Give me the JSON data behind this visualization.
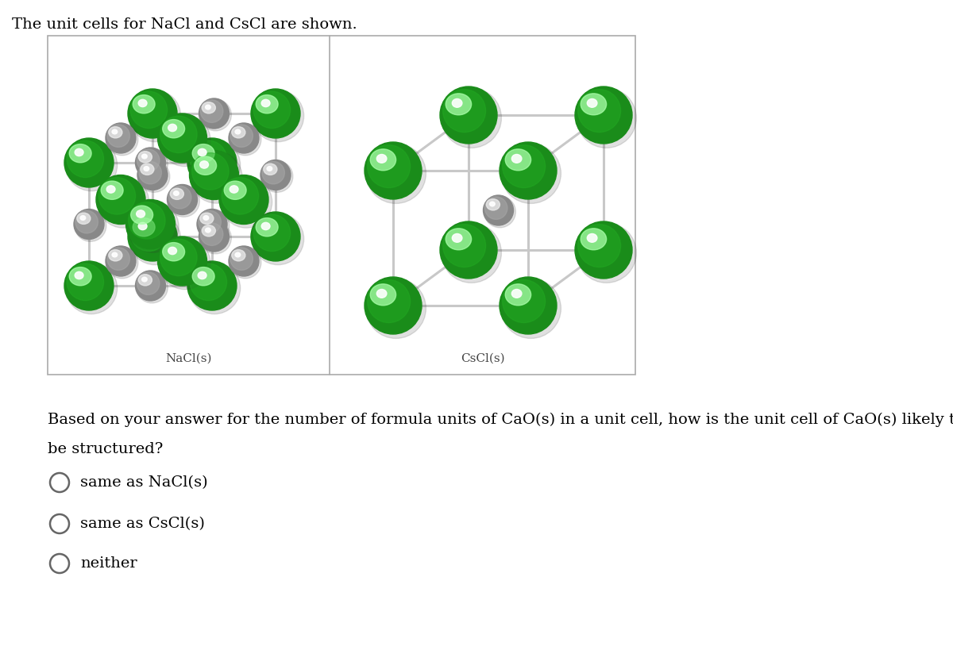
{
  "title_text": "The unit cells for NaCl and CsCl are shown.",
  "nacl_label": "NaCl(s)",
  "cscl_label": "CsCl(s)",
  "question_line1": "Based on your answer for the number of formula units of CaO(s) in a unit cell, how is the unit cell of CaO(s) likely to",
  "question_line2": "be structured?",
  "option1": "same as NaCl(s)",
  "option2": "same as CsCl(s)",
  "option3": "neither",
  "bg_color": "#ffffff",
  "green_dark": "#1a8c1a",
  "green_mid": "#22aa22",
  "green_light": "#55dd55",
  "green_highlight": "#aaffaa",
  "gray_dark": "#888888",
  "gray_mid": "#aaaaaa",
  "gray_light": "#cccccc",
  "gray_highlight": "#eeeeee",
  "line_color": "#c8c8c8",
  "box_edge": "#aaaaaa",
  "title_fontsize": 14,
  "label_fontsize": 11,
  "question_fontsize": 14,
  "option_fontsize": 14
}
